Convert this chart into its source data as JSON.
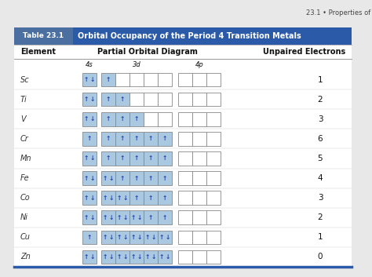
{
  "title": "Orbital Occupancy of the Period 4 Transition Metals",
  "table_label": "Table 23.1",
  "header_bg": "#2b5ba8",
  "label_bg": "#4a6fa0",
  "top_note": "23.1 • Properties of",
  "elements": [
    "Sc",
    "Ti",
    "V",
    "Cr",
    "Mn",
    "Fe",
    "Co",
    "Ni",
    "Cu",
    "Zn"
  ],
  "unpaired": [
    1,
    2,
    3,
    6,
    5,
    4,
    3,
    2,
    1,
    0
  ],
  "s4_states": [
    2,
    2,
    2,
    1,
    2,
    2,
    2,
    2,
    1,
    2
  ],
  "d3_states": [
    [
      1,
      0,
      0,
      0,
      0
    ],
    [
      1,
      1,
      0,
      0,
      0
    ],
    [
      1,
      1,
      1,
      0,
      0
    ],
    [
      1,
      1,
      1,
      1,
      1
    ],
    [
      1,
      1,
      1,
      1,
      1
    ],
    [
      2,
      1,
      1,
      1,
      1
    ],
    [
      2,
      2,
      1,
      1,
      1
    ],
    [
      2,
      2,
      2,
      1,
      1
    ],
    [
      2,
      2,
      2,
      2,
      2
    ],
    [
      2,
      2,
      2,
      2,
      2
    ]
  ],
  "box_fill": "#aac8e0",
  "box_empty": "#ffffff",
  "box_border": "#888888",
  "bg_white": "#ffffff",
  "fig_bg": "#e8e8e8"
}
